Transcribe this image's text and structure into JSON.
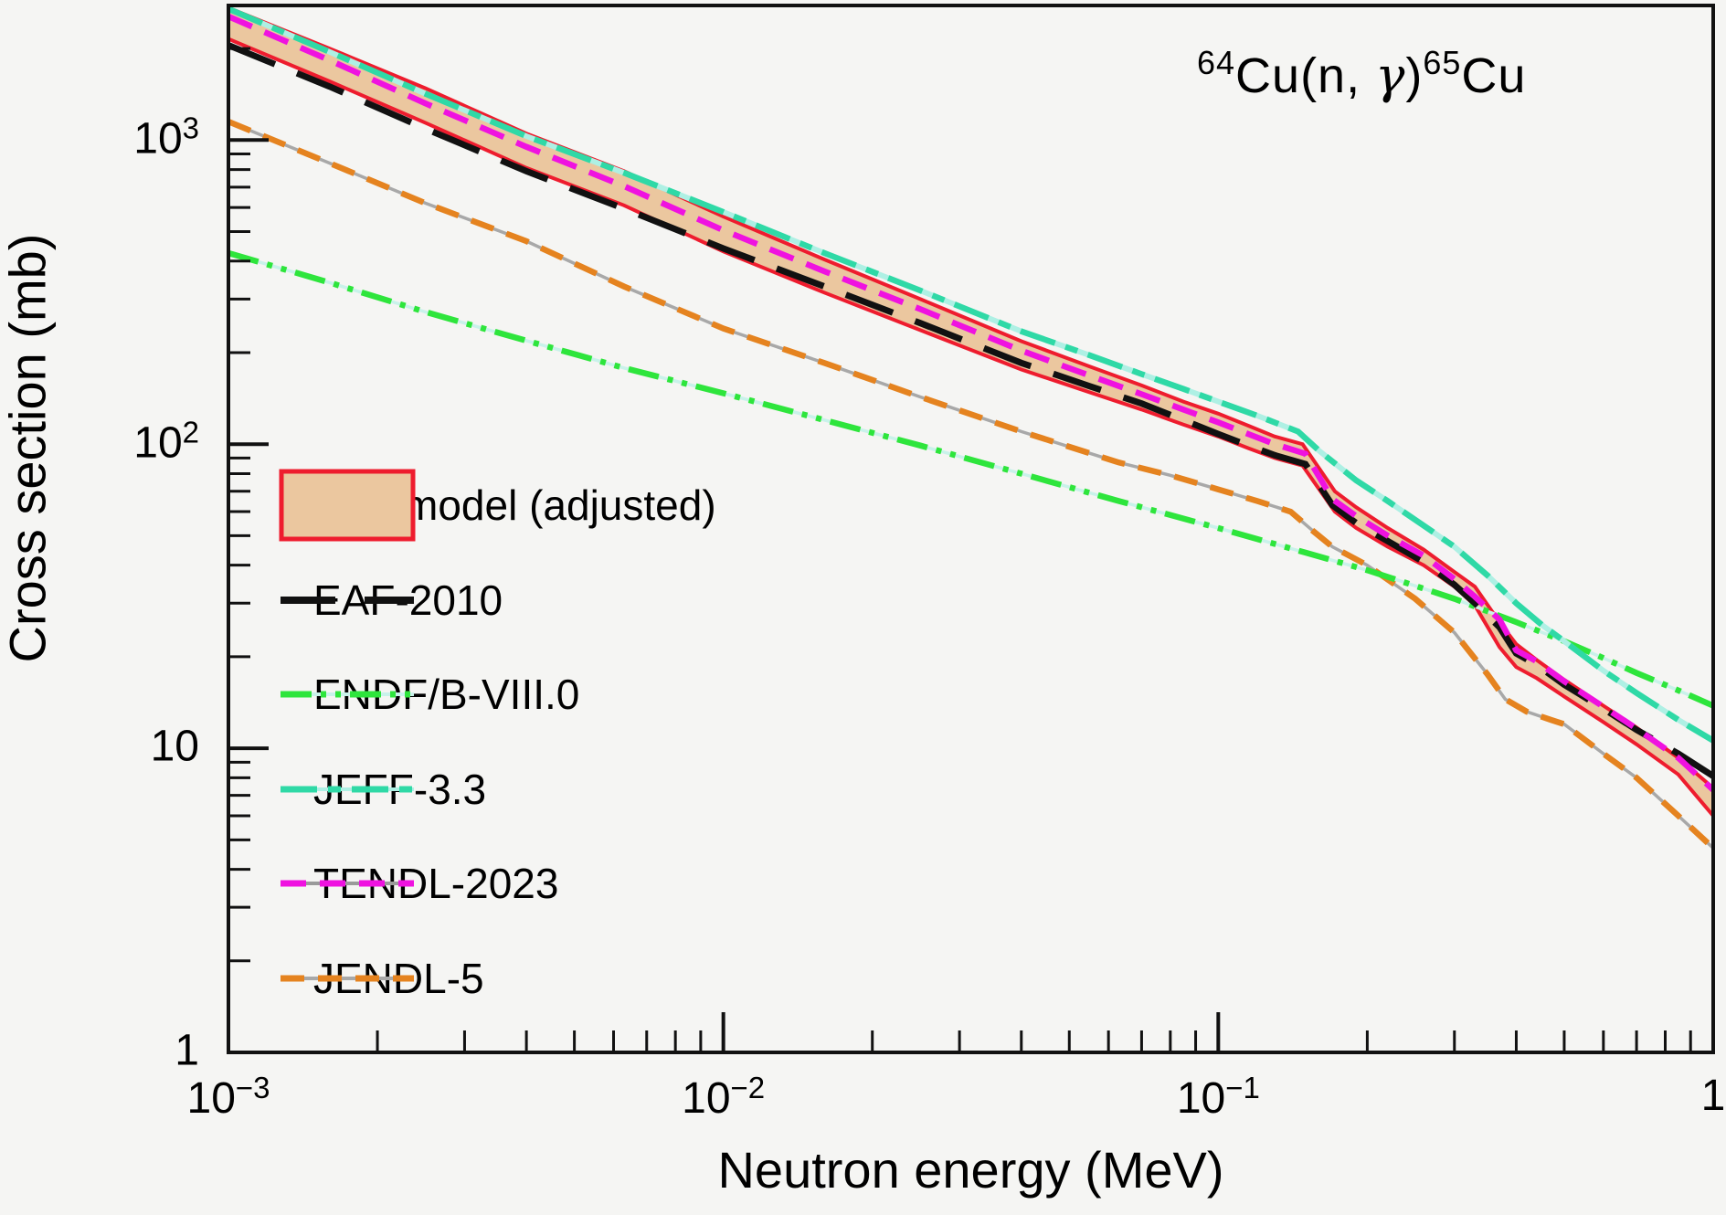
{
  "title": {
    "iso1": "64",
    "part1": "Cu(n, ",
    "gamma": "γ",
    "part2": ")",
    "iso2": "65",
    "part3": "Cu"
  },
  "axes": {
    "x_label": "Neutron energy (MeV)",
    "y_label": "Cross section (mb)",
    "x_ticks": [
      {
        "base": "10",
        "exp": "−3",
        "value": 0.001
      },
      {
        "base": "10",
        "exp": "−2",
        "value": 0.01
      },
      {
        "base": "10",
        "exp": "−1",
        "value": 0.1
      },
      {
        "base": "1",
        "exp": "",
        "value": 1
      }
    ],
    "y_ticks": [
      {
        "base": "1",
        "exp": "",
        "value": 1
      },
      {
        "base": "10",
        "exp": "",
        "value": 10
      },
      {
        "base": "10",
        "exp": "2",
        "value": 100
      },
      {
        "base": "10",
        "exp": "3",
        "value": 1000
      }
    ]
  },
  "legend": {
    "items": [
      {
        "label": "BAL model (adjusted)",
        "type": "band",
        "fill": "#ebc79f",
        "edge": "#ee1c2e"
      },
      {
        "label": "EAF-2010",
        "type": "line",
        "color": "#111111",
        "dash": "60 32",
        "width": 8
      },
      {
        "label": "ENDF/B-VIII.0",
        "type": "line",
        "color": "#2ee53c",
        "dash": "34 10 6 10 6 10",
        "width": 7,
        "under": "#c9f2ea"
      },
      {
        "label": "JEFF-3.3",
        "type": "line",
        "color": "#2fd9a6",
        "dash": "40 12 14 12",
        "width": 7,
        "under": "#aef0e4"
      },
      {
        "label": "TENDL-2023",
        "type": "line",
        "color": "#ef12e0",
        "dash": "28 15",
        "width": 7,
        "under": "#9a9a9a"
      },
      {
        "label": "JENDL-5",
        "type": "line",
        "color": "#e5831f",
        "dash": "26 15",
        "width": 7,
        "under": "#a8a8a8"
      }
    ]
  },
  "chart_data": {
    "type": "line",
    "title": "64Cu(n,gamma)65Cu",
    "xlabel": "Neutron energy (MeV)",
    "ylabel": "Cross section (mb)",
    "xscale": "log",
    "yscale": "log",
    "xlim": [
      0.001,
      1.0
    ],
    "ylim": [
      1.0,
      2770
    ],
    "grid": false,
    "legend_position": "middle-left",
    "band": {
      "name": "BAL model (adjusted)",
      "fill": "#ebc79f",
      "edge": "#ee1c2e",
      "edge_width": 4,
      "x": [
        0.001,
        0.0016,
        0.0025,
        0.004,
        0.0063,
        0.01,
        0.016,
        0.025,
        0.04,
        0.055,
        0.07,
        0.085,
        0.1,
        0.115,
        0.13,
        0.148,
        0.172,
        0.19,
        0.22,
        0.26,
        0.3,
        0.33,
        0.37,
        0.4,
        0.44,
        0.5,
        0.6,
        0.7,
        0.85,
        1.0
      ],
      "upper": [
        2720,
        2000,
        1480,
        1050,
        790,
        560,
        405,
        300,
        218,
        180,
        156,
        138,
        126,
        115,
        106,
        100,
        70,
        62,
        53,
        45,
        38,
        34,
        26,
        22,
        19.5,
        16.8,
        13.8,
        11.7,
        9.3,
        7.4
      ],
      "lower": [
        2150,
        1560,
        1140,
        810,
        610,
        430,
        315,
        237,
        176,
        148,
        130,
        116,
        106,
        97,
        90,
        85,
        60,
        53,
        46,
        40,
        34,
        29.5,
        21.5,
        18.5,
        17,
        14.8,
        12.2,
        10.3,
        8.2,
        6.0
      ]
    },
    "series": [
      {
        "name": "JENDL-5",
        "color": "#e5831f",
        "dash": "26 15",
        "width": 6.5,
        "under": "#a8a8a8",
        "under_width": 3.5,
        "x": [
          0.001,
          0.0016,
          0.0025,
          0.004,
          0.0063,
          0.01,
          0.016,
          0.025,
          0.04,
          0.063,
          0.08,
          0.1,
          0.12,
          0.14,
          0.155,
          0.17,
          0.2,
          0.25,
          0.3,
          0.35,
          0.38,
          0.42,
          0.47,
          0.5,
          0.6,
          0.7,
          0.85,
          1.0
        ],
        "y": [
          1150,
          840,
          620,
          465,
          330,
          240,
          185,
          143,
          110,
          87,
          79,
          71,
          65,
          60,
          52,
          46,
          40,
          31,
          24,
          17.5,
          14.5,
          13.2,
          12.4,
          12.0,
          9.6,
          8.0,
          6.0,
          4.7
        ]
      },
      {
        "name": "ENDF/B-VIII.0",
        "color": "#2ee53c",
        "dash": "34 10 6 10 6 10",
        "width": 6.5,
        "under": "#c9f2ea",
        "under_width": 3.5,
        "x": [
          0.001,
          0.0016,
          0.0025,
          0.004,
          0.0063,
          0.01,
          0.016,
          0.025,
          0.04,
          0.063,
          0.1,
          0.15,
          0.2,
          0.26,
          0.3,
          0.4,
          0.5,
          0.6,
          0.7,
          0.85,
          1.0
        ],
        "y": [
          425,
          340,
          272,
          219,
          178,
          147,
          120,
          99,
          80,
          65,
          53,
          44,
          38.5,
          33.5,
          31,
          26,
          22.5,
          19.8,
          17.7,
          15.5,
          13.8
        ]
      },
      {
        "name": "JEFF-3.3",
        "color": "#2fd9a6",
        "dash": "40 12 14 12",
        "width": 6.5,
        "under": "#aef0e4",
        "under_width": 6,
        "x": [
          0.001,
          0.0016,
          0.0025,
          0.004,
          0.0063,
          0.01,
          0.016,
          0.025,
          0.04,
          0.055,
          0.07,
          0.085,
          0.1,
          0.12,
          0.145,
          0.16,
          0.19,
          0.22,
          0.26,
          0.3,
          0.35,
          0.4,
          0.45,
          0.5,
          0.6,
          0.7,
          0.85,
          1.0
        ],
        "y": [
          2700,
          1950,
          1420,
          1030,
          780,
          580,
          425,
          320,
          235,
          196,
          170,
          152,
          138,
          124,
          110,
          95,
          76,
          65,
          54,
          46,
          37,
          30,
          25.5,
          22.5,
          18,
          15.2,
          12.4,
          10.6
        ]
      },
      {
        "name": "EAF-2010",
        "color": "#111111",
        "dash": "55 26",
        "width": 7,
        "x": [
          0.001,
          0.0016,
          0.0025,
          0.004,
          0.0063,
          0.01,
          0.016,
          0.025,
          0.04,
          0.055,
          0.07,
          0.085,
          0.1,
          0.115,
          0.13,
          0.15,
          0.17,
          0.19,
          0.22,
          0.26,
          0.3,
          0.33,
          0.37,
          0.4,
          0.44,
          0.5,
          0.6,
          0.7,
          0.85,
          1.0
        ],
        "y": [
          2050,
          1500,
          1090,
          790,
          595,
          440,
          330,
          250,
          185,
          155,
          136,
          120,
          108,
          99,
          92,
          86,
          63,
          55,
          48,
          41,
          34.5,
          30,
          25,
          20.5,
          18.8,
          16.2,
          13.5,
          11.5,
          9.6,
          8.1
        ]
      },
      {
        "name": "TENDL-2023",
        "color": "#ef12e0",
        "dash": "28 15",
        "width": 6.5,
        "x": [
          0.001,
          0.0016,
          0.0025,
          0.004,
          0.0063,
          0.01,
          0.016,
          0.025,
          0.04,
          0.055,
          0.07,
          0.085,
          0.1,
          0.115,
          0.13,
          0.15,
          0.17,
          0.19,
          0.22,
          0.26,
          0.3,
          0.33,
          0.37,
          0.4,
          0.44,
          0.5,
          0.6,
          0.7,
          0.85,
          1.0
        ],
        "y": [
          2550,
          1830,
          1320,
          950,
          705,
          505,
          370,
          278,
          203,
          168,
          146,
          130,
          118,
          108,
          100,
          93,
          66,
          58,
          50,
          43,
          36,
          31.5,
          26.5,
          21,
          19.3,
          16.6,
          13.7,
          11.6,
          9.3,
          7.3
        ]
      }
    ]
  },
  "style": {
    "frame_color": "#111111",
    "background": "#f5f5f3"
  }
}
